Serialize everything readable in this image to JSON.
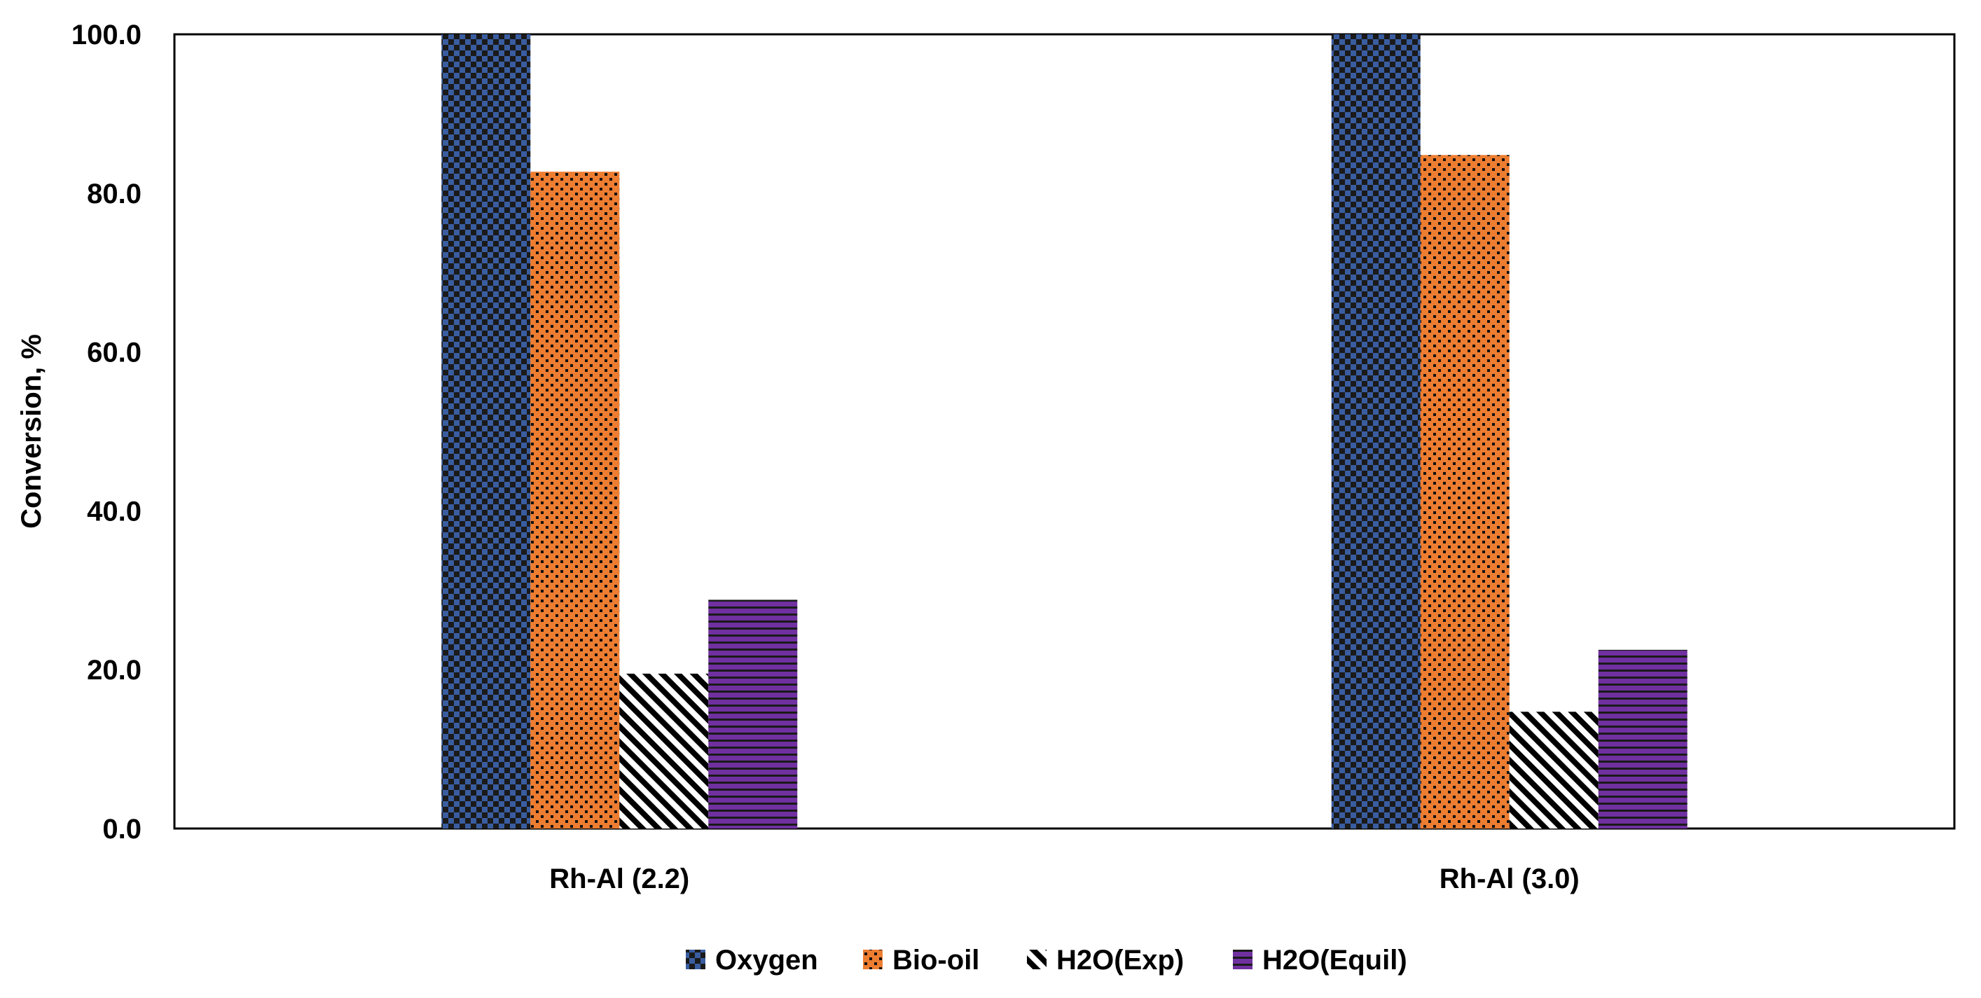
{
  "chart_data": {
    "type": "bar",
    "title": "",
    "xlabel": "",
    "ylabel": "Conversion, %",
    "ylim": [
      0,
      100
    ],
    "yticks": [
      "0.0",
      "20.0",
      "40.0",
      "60.0",
      "80.0",
      "100.0"
    ],
    "grid": false,
    "legend_position": "bottom-center",
    "categories": [
      "Rh-Al (2.2)",
      "Rh-Al (3.0)"
    ],
    "series": [
      {
        "name": "Oxygen",
        "values": [
          100.0,
          100.0
        ],
        "color": "#3A5DA0",
        "pattern": "checker"
      },
      {
        "name": "Bio-oil",
        "values": [
          82.7,
          84.8
        ],
        "color": "#ED7D31",
        "pattern": "dots"
      },
      {
        "name": "H2O(Exp)",
        "values": [
          19.5,
          14.7
        ],
        "color": "#000000",
        "pattern": "diagonal"
      },
      {
        "name": "H2O(Equil)",
        "values": [
          28.8,
          22.5
        ],
        "color": "#7030A0",
        "pattern": "horizontal"
      }
    ]
  }
}
